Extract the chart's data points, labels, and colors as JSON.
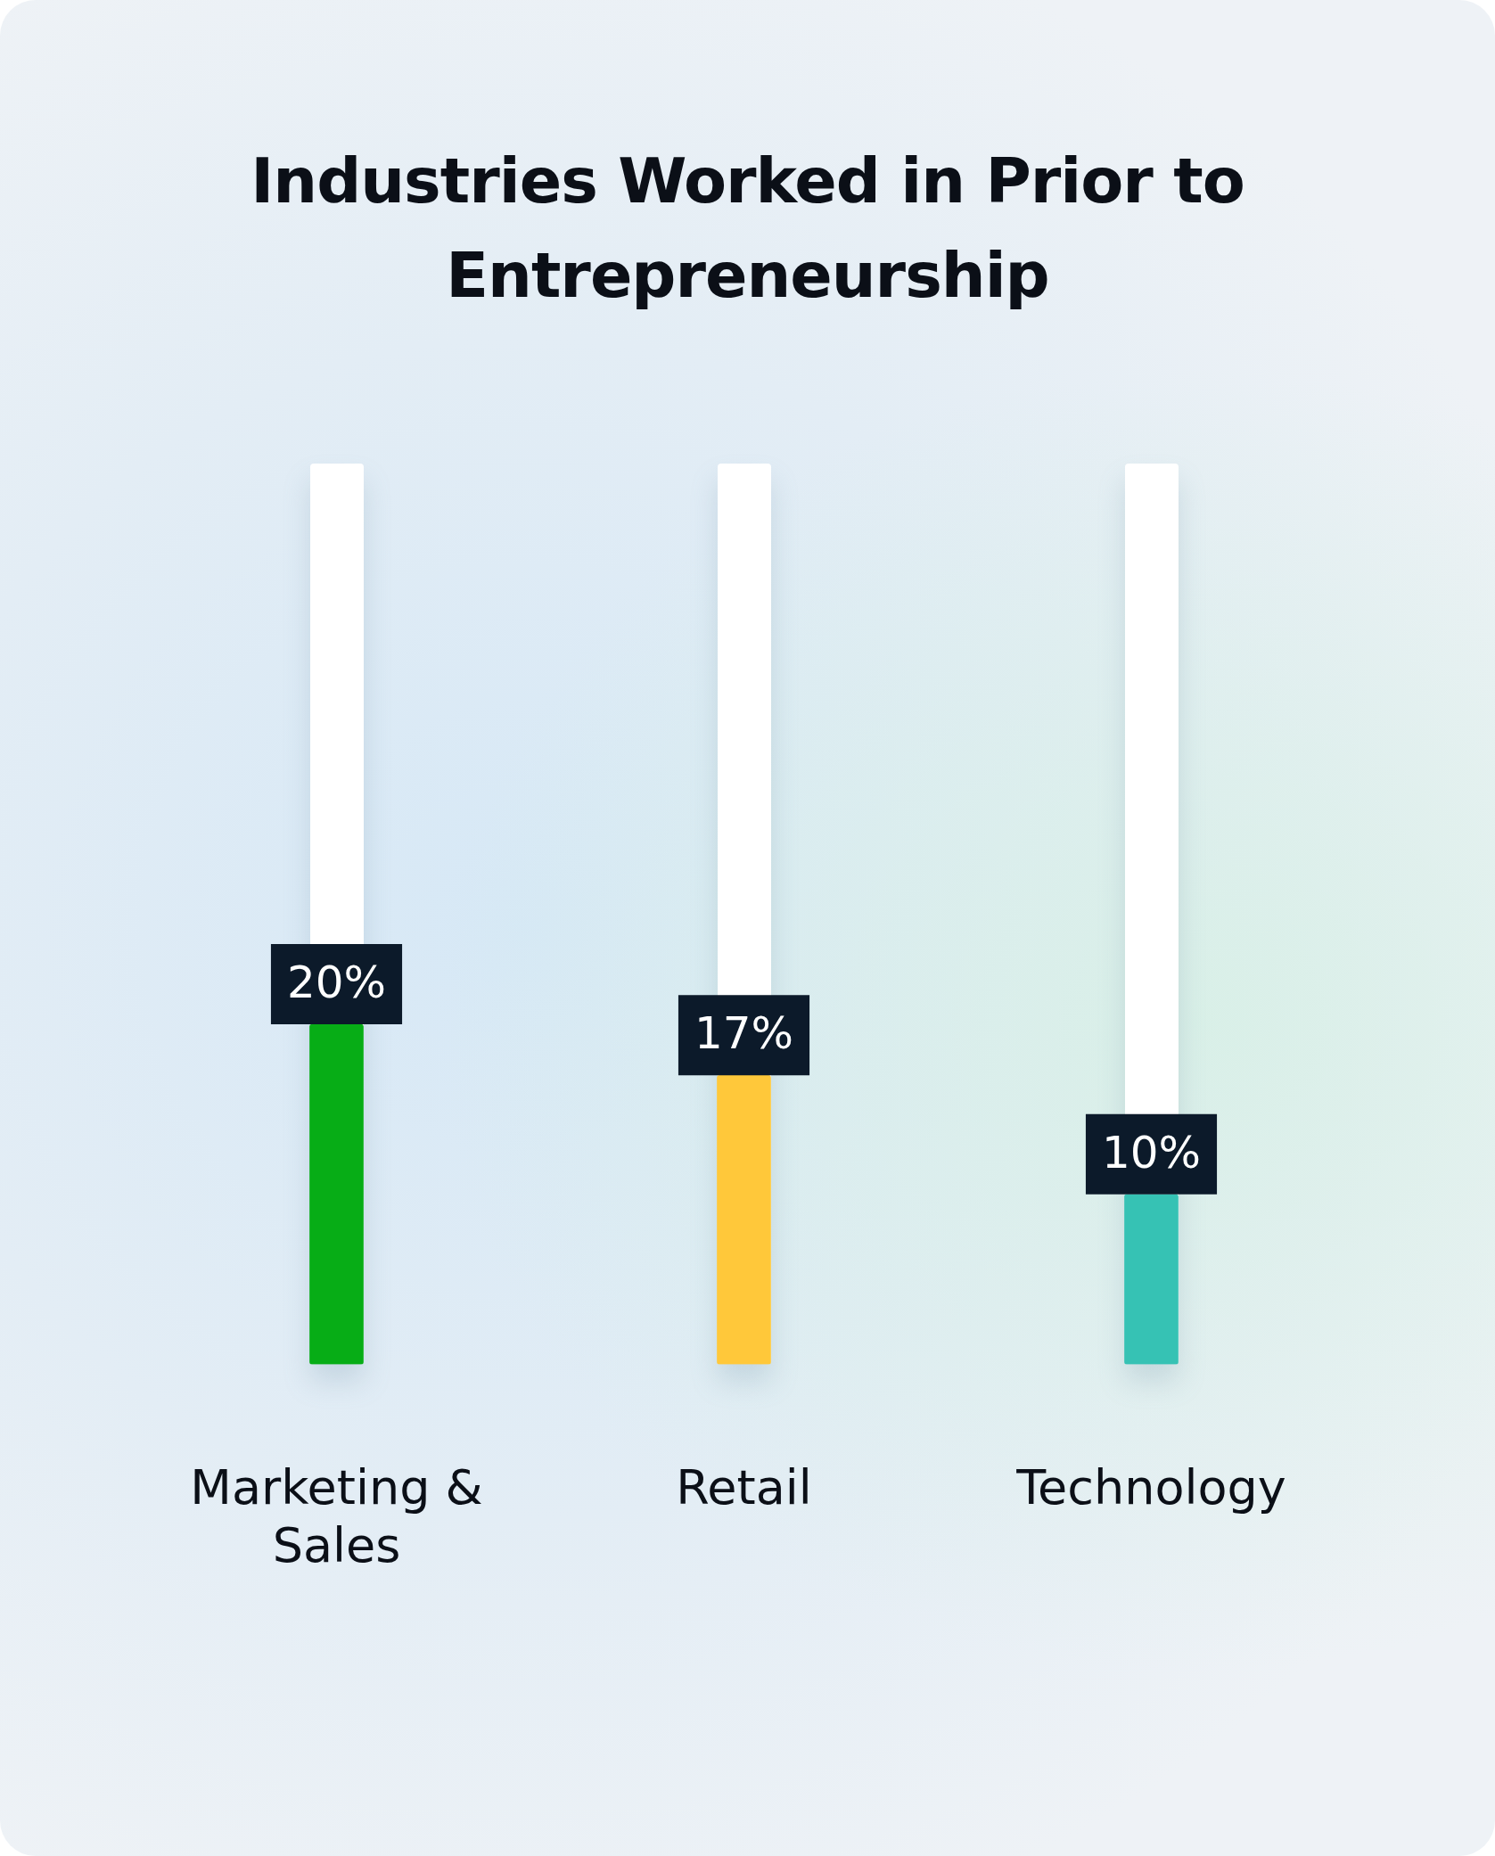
{
  "chart_data": {
    "type": "bar",
    "title": "Industries Worked in Prior to Entrepreneurship",
    "categories": [
      "Marketing & Sales",
      "Retail",
      "Technology"
    ],
    "values": [
      20,
      17,
      10
    ],
    "colors": [
      "#07ad16",
      "#ffc83a",
      "#36c2b4"
    ],
    "value_labels": [
      "20%",
      "17%",
      "10%"
    ],
    "grid": false,
    "legend": false,
    "tick_labels": "x"
  }
}
